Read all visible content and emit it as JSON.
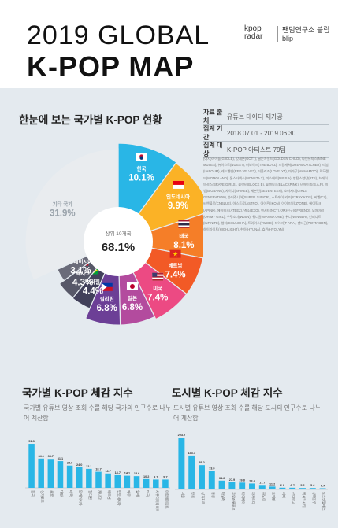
{
  "header": {
    "title_line1": "2019 GLOBAL",
    "title_line2": "K-POP MAP",
    "brand_logo": "kpop radar",
    "brand_korean": "팬덤연구소 블립 blip"
  },
  "colors": {
    "background_band": "#e4eaef",
    "bars": "#29b6e6",
    "center": "#ffffff"
  },
  "map_section": {
    "title": "한눈에 보는 국가별 K-POP 현황",
    "meta": [
      {
        "key": "자료 출처",
        "value": "유튜브 데이터 재가공"
      },
      {
        "key": "집계 기간",
        "value": "2018.07.01 - 2019.06.30"
      },
      {
        "key": "집계 대상",
        "value": "K-POP 아티스트 79팀"
      }
    ],
    "artists_text": "(여자)아이들(G-IDLE), 갓세븐(GOT7), 골든차일드(GOLDEN CHILD), 나인뮤지스(NINE MUSES), 뉴이스트(NU'EST), 더보이즈(THE BOYZ), 드림캐쳐(DREAMCATCHER), 라붐(LABOUM), 레드벨벳(RED VELVET), 러블리즈(LOVELYZ), 마마무(MAMAMOO), 모모랜드(MOMOLAND), 몬스타엑스(MONSTA X), 미스에이(MISS A), 방탄소년단(BTS), 브레이브걸스(BRAVE GIRLS), 블락비(BLOCK B), 블랙핑크(BLACKPINK), 비에이피(B.A.P), 빅뱅(BIGBANG), 샤이니(SHINEE), 세븐틴(SEVENTEEN), 소녀시대(GIRLS' GENERATION), 슈퍼주니어(SUPER JUNIOR), 스트레이 키즈(STRAY KIDS), 씨엘(CL), 씨엔블루(CNBLUE), 아스트로(ASTRO), 아이콘(IKON), 아이즈원(IZ*ONE), 에이핑크(APINK), 에이티즈(ATEEZ), 엑소(EXO), 엔시티(NCT), 여자친구(GFRIEND), 오마이걸(OH MY GIRL), 우주소녀(WJSN), 워너원(WANNA ONE), 위너(WINNER), 인피니트(INFINITE), 청하(CHUNGHA), 트와이스(TWICE), 티아라(T-ARA), 펜타곤(PENTAGON), 하이라이트(HIGHLIGHT), 현아(HYUNA), 효린(HYOLYN)",
    "center_label": "상위 10개국",
    "center_value": "68.1%"
  },
  "chart_data": [
    {
      "type": "pie",
      "title": "한눈에 보는 국가별 K-POP 현황",
      "labels": [
        "한국",
        "인도네시아",
        "태국",
        "베트남",
        "미국",
        "일본",
        "필리핀",
        "브라질",
        "멕시코",
        "말레이시아",
        "기타 국가"
      ],
      "values": [
        10.1,
        9.9,
        8.1,
        7.4,
        7.4,
        6.8,
        6.8,
        4.4,
        4.3,
        3.1,
        31.9
      ],
      "value_labels": [
        "10.1%",
        "9.9%",
        "8.1%",
        "7.4%",
        "7.4%",
        "6.8%",
        "6.8%",
        "4.4%",
        "4.3%",
        "3.1%",
        "31.9%"
      ],
      "colors": [
        "#29b6e6",
        "#fbb226",
        "#f57e28",
        "#f25a26",
        "#ec4a83",
        "#b34b9e",
        "#6c3f96",
        "#41405a",
        "#575868",
        "#6a6b79",
        "#e9ecef"
      ],
      "flags": [
        "korea",
        "indonesia",
        "thailand",
        "vietnam",
        "usa",
        "japan",
        "philippines",
        "brazil",
        "mexico",
        "malaysia",
        "none"
      ]
    },
    {
      "type": "bar",
      "title": "국가별 K-POP 체감 지수",
      "subtitle": "국가별 유튜브 영상 조회 수를 해당 국가의 인구수로 나누어 계산함",
      "values": [
        51.3,
        34.1,
        33.7,
        31.1,
        25.9,
        24.0,
        22.1,
        18.7,
        16.7,
        14.7,
        14.1,
        13.6,
        10.2,
        9.7,
        9.7
      ],
      "value_labels": [
        "51.3",
        "34.1",
        "33.7",
        "31.1",
        "25.9",
        "24.0",
        "22.1",
        "18.7",
        "16.7",
        "14.7",
        "14.1",
        "13.6",
        "10.2",
        "9.7",
        "9.7"
      ],
      "categories": [
        "한국",
        "싱가포르",
        "홍콩",
        "대만",
        "태국",
        "말레이시아",
        "필리핀",
        "캐나다",
        "베트남",
        "인도네시아",
        "페루",
        "칠레",
        "미국",
        "사우디아라비아",
        "아랍에미리트"
      ],
      "ylim": [
        0,
        55
      ]
    },
    {
      "type": "bar",
      "title": "도시별 K-POP 체감 지수",
      "subtitle": "도시별 유튜브 영상 조회 수를 해당 도시의 인구수로 나누어 계산함",
      "values": [
        203.2,
        133.1,
        95.2,
        73.0,
        34.6,
        27.9,
        26.8,
        23.4,
        17.7,
        11.2,
        6.8,
        6.7,
        5.6,
        5.6,
        4.7
      ],
      "value_labels": [
        "203.2",
        "133.1",
        "95.2",
        "73.0",
        "34.6",
        "27.9",
        "26.8",
        "23.4",
        "17.7",
        "11.2",
        "6.8",
        "6.7",
        "5.6",
        "5.6",
        "4.7"
      ],
      "categories": [
        "서울",
        "방콕",
        "싱가포르",
        "홍콩",
        "마닐라",
        "쿠알라룸푸르",
        "타이베이",
        "자카르타",
        "하노이",
        "호찌민",
        "리마",
        "산티아고",
        "멕시코시티",
        "상파울루",
        "로스앤젤레스"
      ],
      "ylim": [
        0,
        210
      ]
    }
  ]
}
